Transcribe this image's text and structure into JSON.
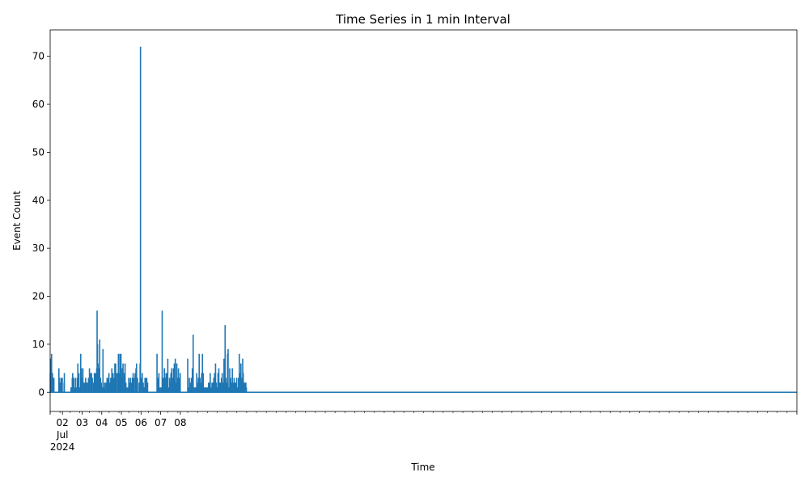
{
  "chart_data": {
    "type": "line",
    "title": "Time Series in 1 min Interval",
    "xlabel": "Time",
    "ylabel": "Event Count",
    "x_range_days": [
      "2024-07-01 09:00",
      "2024-08-08 09:00"
    ],
    "ylim": [
      -4,
      75.5
    ],
    "y_ticks": [
      0,
      10,
      20,
      30,
      40,
      50,
      60,
      70
    ],
    "x_ticks": [
      {
        "x": "2024-07-02",
        "label": "02",
        "sublabels": [
          "Jul",
          "2024"
        ]
      },
      {
        "x": "2024-07-03",
        "label": "03"
      },
      {
        "x": "2024-07-04",
        "label": "04"
      },
      {
        "x": "2024-07-05",
        "label": "05"
      },
      {
        "x": "2024-07-06",
        "label": "06"
      },
      {
        "x": "2024-07-07",
        "label": "07"
      },
      {
        "x": "2024-07-08",
        "label": "08"
      }
    ],
    "color": "#1f77b4",
    "series": [
      {
        "spikes": [
          [
            "2024-07-01 09:10",
            4
          ],
          [
            "2024-07-01 09:25",
            7
          ],
          [
            "2024-07-01 09:40",
            7
          ],
          [
            "2024-07-01 10:00",
            3
          ],
          [
            "2024-07-01 10:30",
            5
          ],
          [
            "2024-07-01 10:45",
            8
          ],
          [
            "2024-07-01 11:20",
            3
          ],
          [
            "2024-07-01 11:50",
            4
          ],
          [
            "2024-07-01 12:30",
            3
          ],
          [
            "2024-07-01 13:10",
            3
          ],
          [
            "2024-07-01 13:35",
            3
          ],
          [
            "2024-07-01 19:40",
            5
          ],
          [
            "2024-07-01 20:00",
            3
          ],
          [
            "2024-07-01 21:00",
            2
          ],
          [
            "2024-07-01 22:10",
            3
          ],
          [
            "2024-07-01 23:30",
            3
          ],
          [
            "2024-07-01 23:45",
            3
          ],
          [
            "2024-07-02 02:00",
            2
          ],
          [
            "2024-07-02 02:20",
            4
          ],
          [
            "2024-07-02 10:30",
            1
          ],
          [
            "2024-07-02 11:00",
            1
          ],
          [
            "2024-07-02 12:00",
            3
          ],
          [
            "2024-07-02 12:30",
            4
          ],
          [
            "2024-07-02 13:20",
            3
          ],
          [
            "2024-07-02 14:00",
            3
          ],
          [
            "2024-07-02 15:00",
            1
          ],
          [
            "2024-07-02 16:10",
            3
          ],
          [
            "2024-07-02 17:20",
            1
          ],
          [
            "2024-07-02 18:20",
            3
          ],
          [
            "2024-07-02 18:50",
            6
          ],
          [
            "2024-07-02 19:30",
            3
          ],
          [
            "2024-07-02 20:10",
            4
          ],
          [
            "2024-07-02 21:00",
            1
          ],
          [
            "2024-07-02 22:00",
            1
          ],
          [
            "2024-07-02 22:20",
            8
          ],
          [
            "2024-07-02 23:10",
            5
          ],
          [
            "2024-07-02 23:40",
            3
          ],
          [
            "2024-07-03 01:00",
            5
          ],
          [
            "2024-07-03 02:00",
            2
          ],
          [
            "2024-07-03 03:20",
            2
          ],
          [
            "2024-07-03 04:20",
            3
          ],
          [
            "2024-07-03 05:30",
            2
          ],
          [
            "2024-07-03 06:30",
            2
          ],
          [
            "2024-07-03 07:50",
            3
          ],
          [
            "2024-07-03 09:00",
            5
          ],
          [
            "2024-07-03 10:20",
            4
          ],
          [
            "2024-07-03 11:30",
            4
          ],
          [
            "2024-07-03 12:30",
            3
          ],
          [
            "2024-07-03 14:00",
            2
          ],
          [
            "2024-07-03 15:00",
            4
          ],
          [
            "2024-07-03 16:00",
            4
          ],
          [
            "2024-07-03 17:00",
            4
          ],
          [
            "2024-07-03 17:50",
            5
          ],
          [
            "2024-07-03 18:20",
            17
          ],
          [
            "2024-07-03 18:50",
            10
          ],
          [
            "2024-07-03 19:30",
            6
          ],
          [
            "2024-07-03 20:20",
            5
          ],
          [
            "2024-07-03 21:00",
            2
          ],
          [
            "2024-07-03 21:30",
            11
          ],
          [
            "2024-07-03 22:30",
            3
          ],
          [
            "2024-07-03 23:30",
            2
          ],
          [
            "2024-07-04 00:20",
            1
          ],
          [
            "2024-07-04 00:50",
            1
          ],
          [
            "2024-07-04 01:30",
            9
          ],
          [
            "2024-07-04 02:30",
            1
          ],
          [
            "2024-07-04 03:30",
            2
          ],
          [
            "2024-07-04 05:00",
            2
          ],
          [
            "2024-07-04 06:30",
            3
          ],
          [
            "2024-07-04 07:40",
            3
          ],
          [
            "2024-07-04 08:50",
            4
          ],
          [
            "2024-07-04 10:00",
            2
          ],
          [
            "2024-07-04 11:00",
            3
          ],
          [
            "2024-07-04 12:20",
            5
          ],
          [
            "2024-07-04 13:50",
            4
          ],
          [
            "2024-07-04 15:00",
            3
          ],
          [
            "2024-07-04 16:00",
            6
          ],
          [
            "2024-07-04 17:00",
            6
          ],
          [
            "2024-07-04 18:00",
            4
          ],
          [
            "2024-07-04 19:30",
            4
          ],
          [
            "2024-07-04 20:20",
            8
          ],
          [
            "2024-07-04 21:30",
            4
          ],
          [
            "2024-07-04 22:10",
            8
          ],
          [
            "2024-07-04 23:30",
            8
          ],
          [
            "2024-07-05 00:20",
            3
          ],
          [
            "2024-07-05 01:00",
            5
          ],
          [
            "2024-07-05 02:00",
            6
          ],
          [
            "2024-07-05 03:20",
            4
          ],
          [
            "2024-07-05 04:30",
            6
          ],
          [
            "2024-07-05 05:30",
            2
          ],
          [
            "2024-07-05 06:30",
            1
          ],
          [
            "2024-07-05 07:50",
            1
          ],
          [
            "2024-07-05 09:00",
            3
          ],
          [
            "2024-07-05 10:00",
            2
          ],
          [
            "2024-07-05 11:00",
            3
          ],
          [
            "2024-07-05 12:20",
            2
          ],
          [
            "2024-07-05 13:20",
            3
          ],
          [
            "2024-07-05 14:20",
            4
          ],
          [
            "2024-07-05 15:20",
            3
          ],
          [
            "2024-07-05 16:50",
            4
          ],
          [
            "2024-07-05 17:50",
            5
          ],
          [
            "2024-07-05 18:30",
            6
          ],
          [
            "2024-07-05 19:40",
            3
          ],
          [
            "2024-07-05 21:40",
            2
          ],
          [
            "2024-07-05 22:50",
            6
          ],
          [
            "2024-07-05 23:20",
            72
          ],
          [
            "2024-07-06 00:20",
            3
          ],
          [
            "2024-07-06 01:30",
            4
          ],
          [
            "2024-07-06 02:40",
            2
          ],
          [
            "2024-07-06 03:20",
            1
          ],
          [
            "2024-07-06 04:50",
            3
          ],
          [
            "2024-07-06 06:00",
            3
          ],
          [
            "2024-07-06 07:00",
            3
          ],
          [
            "2024-07-06 08:00",
            2
          ],
          [
            "2024-07-06 19:30",
            8
          ],
          [
            "2024-07-06 20:10",
            3
          ],
          [
            "2024-07-06 21:00",
            3
          ],
          [
            "2024-07-06 21:50",
            4
          ],
          [
            "2024-07-06 23:00",
            1
          ],
          [
            "2024-07-07 00:20",
            1
          ],
          [
            "2024-07-07 01:00",
            1
          ],
          [
            "2024-07-07 01:50",
            17
          ],
          [
            "2024-07-07 02:40",
            3
          ],
          [
            "2024-07-07 03:40",
            3
          ],
          [
            "2024-07-07 04:30",
            5
          ],
          [
            "2024-07-07 05:30",
            3
          ],
          [
            "2024-07-07 06:30",
            4
          ],
          [
            "2024-07-07 07:40",
            4
          ],
          [
            "2024-07-07 08:40",
            7
          ],
          [
            "2024-07-07 09:40",
            1
          ],
          [
            "2024-07-07 10:50",
            3
          ],
          [
            "2024-07-07 11:50",
            2
          ],
          [
            "2024-07-07 12:30",
            4
          ],
          [
            "2024-07-07 13:30",
            5
          ],
          [
            "2024-07-07 14:40",
            3
          ],
          [
            "2024-07-07 15:40",
            5
          ],
          [
            "2024-07-07 16:40",
            6
          ],
          [
            "2024-07-07 17:50",
            7
          ],
          [
            "2024-07-07 18:50",
            2
          ],
          [
            "2024-07-07 19:40",
            6
          ],
          [
            "2024-07-07 20:50",
            3
          ],
          [
            "2024-07-07 21:40",
            5
          ],
          [
            "2024-07-07 22:40",
            3
          ],
          [
            "2024-07-07 23:50",
            4
          ],
          [
            "2024-07-08 09:00",
            7
          ],
          [
            "2024-07-08 10:00",
            1
          ],
          [
            "2024-07-08 11:00",
            3
          ],
          [
            "2024-07-08 12:20",
            2
          ],
          [
            "2024-07-08 13:30",
            3
          ],
          [
            "2024-07-08 14:40",
            5
          ],
          [
            "2024-07-08 15:40",
            12
          ],
          [
            "2024-07-08 16:40",
            1
          ],
          [
            "2024-07-08 17:50",
            1
          ],
          [
            "2024-07-08 19:00",
            1
          ],
          [
            "2024-07-08 20:00",
            4
          ],
          [
            "2024-07-08 21:00",
            2
          ],
          [
            "2024-07-08 22:00",
            3
          ],
          [
            "2024-07-08 23:00",
            8
          ],
          [
            "2024-07-09 00:00",
            3
          ],
          [
            "2024-07-09 01:00",
            2
          ],
          [
            "2024-07-09 02:00",
            4
          ],
          [
            "2024-07-09 03:00",
            8
          ],
          [
            "2024-07-09 04:00",
            4
          ],
          [
            "2024-07-09 05:00",
            1
          ],
          [
            "2024-07-09 06:00",
            1
          ],
          [
            "2024-07-09 07:00",
            1
          ],
          [
            "2024-07-09 08:20",
            1
          ],
          [
            "2024-07-09 09:20",
            1
          ],
          [
            "2024-07-09 10:30",
            2
          ],
          [
            "2024-07-09 11:30",
            2
          ],
          [
            "2024-07-09 12:30",
            4
          ],
          [
            "2024-07-09 13:40",
            1
          ],
          [
            "2024-07-09 14:40",
            2
          ],
          [
            "2024-07-09 15:40",
            2
          ],
          [
            "2024-07-09 16:50",
            3
          ],
          [
            "2024-07-09 17:50",
            4
          ],
          [
            "2024-07-09 19:00",
            6
          ],
          [
            "2024-07-09 20:00",
            2
          ],
          [
            "2024-07-09 21:00",
            1
          ],
          [
            "2024-07-09 22:00",
            4
          ],
          [
            "2024-07-09 23:00",
            5
          ],
          [
            "2024-07-10 00:00",
            2
          ],
          [
            "2024-07-10 01:10",
            2
          ],
          [
            "2024-07-10 02:10",
            3
          ],
          [
            "2024-07-10 03:10",
            4
          ],
          [
            "2024-07-10 04:20",
            2
          ],
          [
            "2024-07-10 05:20",
            7
          ],
          [
            "2024-07-10 06:00",
            5
          ],
          [
            "2024-07-10 06:40",
            14
          ],
          [
            "2024-07-10 07:40",
            3
          ],
          [
            "2024-07-10 08:40",
            2
          ],
          [
            "2024-07-10 09:40",
            8
          ],
          [
            "2024-07-10 10:20",
            9
          ],
          [
            "2024-07-10 11:20",
            1
          ],
          [
            "2024-07-10 12:20",
            5
          ],
          [
            "2024-07-10 13:30",
            3
          ],
          [
            "2024-07-10 14:30",
            2
          ],
          [
            "2024-07-10 15:30",
            5
          ],
          [
            "2024-07-10 16:40",
            2
          ],
          [
            "2024-07-10 17:40",
            3
          ],
          [
            "2024-07-10 18:40",
            2
          ],
          [
            "2024-07-10 19:40",
            2
          ],
          [
            "2024-07-10 20:50",
            3
          ],
          [
            "2024-07-10 21:50",
            1
          ],
          [
            "2024-07-10 23:00",
            3
          ],
          [
            "2024-07-11 00:00",
            8
          ],
          [
            "2024-07-11 01:00",
            4
          ],
          [
            "2024-07-11 02:00",
            6
          ],
          [
            "2024-07-11 03:10",
            3
          ],
          [
            "2024-07-11 04:10",
            7
          ],
          [
            "2024-07-11 04:50",
            4
          ],
          [
            "2024-07-11 05:50",
            2
          ],
          [
            "2024-07-11 07:00",
            2
          ],
          [
            "2024-07-11 08:00",
            2
          ],
          [
            "2024-07-11 08:40",
            1
          ]
        ]
      }
    ]
  }
}
